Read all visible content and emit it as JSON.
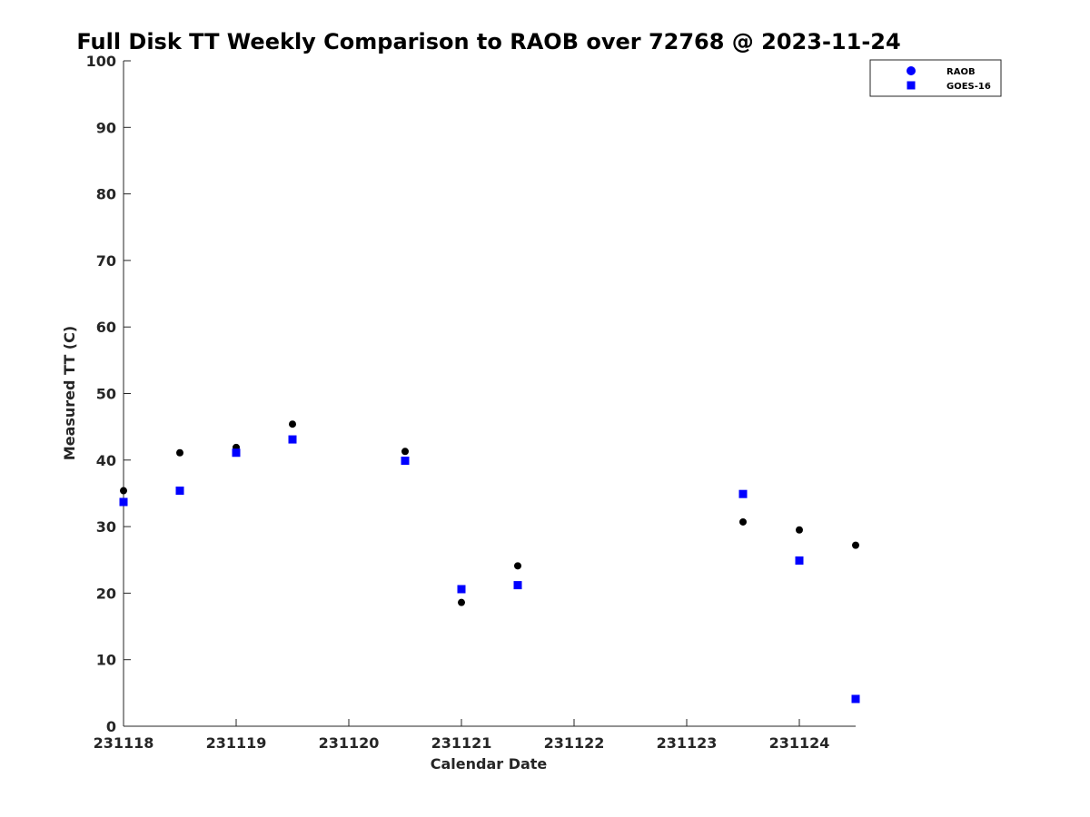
{
  "chart_data": {
    "type": "scatter",
    "title": "Full Disk TT Weekly Comparison to RAOB over 72768 @ 2023-11-24",
    "xlabel": "Calendar Date",
    "ylabel": "Measured TT (C)",
    "x_ticks": [
      "231118",
      "231119",
      "231120",
      "231121",
      "231122",
      "231123",
      "231124"
    ],
    "xlim": [
      "231118",
      "231124.5"
    ],
    "ylim": [
      0,
      100
    ],
    "y_ticks": [
      0,
      10,
      20,
      30,
      40,
      50,
      60,
      70,
      80,
      90,
      100
    ],
    "grid": false,
    "legend_position": "top-right",
    "series": [
      {
        "name": "RAOB",
        "marker": "circle",
        "color": "#000000",
        "legend_color": "#0000ff",
        "points": [
          {
            "x": "231118 00Z",
            "y": 35.4
          },
          {
            "x": "231118 12Z",
            "y": 41.1
          },
          {
            "x": "231119 00Z",
            "y": 41.9
          },
          {
            "x": "231119 12Z",
            "y": 45.4
          },
          {
            "x": "231120 12Z",
            "y": 41.3
          },
          {
            "x": "231121 00Z",
            "y": 18.6
          },
          {
            "x": "231121 12Z",
            "y": 24.1
          },
          {
            "x": "231123 12Z",
            "y": 30.7
          },
          {
            "x": "231124 00Z",
            "y": 29.5
          },
          {
            "x": "231124 12Z",
            "y": 27.2
          }
        ]
      },
      {
        "name": "GOES-16",
        "marker": "square",
        "color": "#0000ff",
        "legend_color": "#0000ff",
        "points": [
          {
            "x": "231118 00Z",
            "y": 33.7
          },
          {
            "x": "231118 12Z",
            "y": 35.4
          },
          {
            "x": "231119 00Z",
            "y": 41.1
          },
          {
            "x": "231119 12Z",
            "y": 43.1
          },
          {
            "x": "231120 12Z",
            "y": 39.9
          },
          {
            "x": "231121 00Z",
            "y": 20.6
          },
          {
            "x": "231121 12Z",
            "y": 21.2
          },
          {
            "x": "231123 12Z",
            "y": 34.9
          },
          {
            "x": "231124 00Z",
            "y": 24.9
          },
          {
            "x": "231124 12Z",
            "y": 4.1
          }
        ]
      }
    ]
  }
}
